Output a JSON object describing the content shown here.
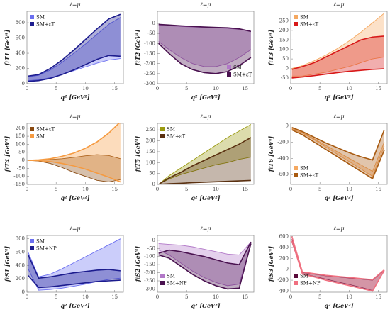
{
  "chart_data": [
    {
      "type": "band",
      "title": "ℓ=μ",
      "xlabel": "q²  [GeV²]",
      "ylabel": "fℓT1 [GeV⁴]",
      "legend": "upper left",
      "x": [
        0.2,
        2,
        4,
        6,
        8,
        10,
        12,
        14,
        16
      ],
      "xlim": [
        0,
        16.5
      ],
      "xticks": [
        0,
        5,
        10,
        15
      ],
      "ylim": [
        0,
        950
      ],
      "yticks": [
        0,
        200,
        400,
        600,
        800
      ],
      "series": [
        {
          "name": "SM",
          "color": "#6b6ff0",
          "values": [
            90,
            110,
            180,
            280,
            400,
            520,
            650,
            780,
            870
          ],
          "lower": [
            40,
            50,
            80,
            120,
            170,
            220,
            270,
            310,
            330
          ]
        },
        {
          "name": "SM+εT",
          "color": "#1c1c8e",
          "values": [
            100,
            120,
            200,
            310,
            440,
            580,
            720,
            850,
            910
          ],
          "lower": [
            30,
            40,
            70,
            120,
            180,
            250,
            320,
            370,
            360
          ]
        }
      ]
    },
    {
      "type": "band",
      "title": "ℓ=μ",
      "xlabel": "q²  [GeV²]",
      "ylabel": "fℓT2 [GeV⁴]",
      "legend": "lower right",
      "x": [
        0.2,
        2,
        4,
        6,
        8,
        10,
        12,
        14,
        16
      ],
      "xlim": [
        0,
        16.5
      ],
      "xticks": [
        0,
        5,
        10,
        15
      ],
      "ylim": [
        -300,
        60
      ],
      "yticks": [
        0,
        -50,
        -100,
        -150,
        -200,
        -250,
        -300
      ],
      "series": [
        {
          "name": "SM",
          "color": "#b278c8",
          "values": [
            -10,
            -12,
            -15,
            -18,
            -20,
            -22,
            -25,
            -30,
            -40
          ],
          "lower": [
            -90,
            -130,
            -170,
            -200,
            -215,
            -215,
            -200,
            -170,
            -130
          ]
        },
        {
          "name": "SM+εT",
          "color": "#4a1250",
          "values": [
            -5,
            -8,
            -12,
            -15,
            -18,
            -20,
            -22,
            -27,
            -40
          ],
          "lower": [
            -100,
            -150,
            -200,
            -230,
            -245,
            -250,
            -240,
            -210,
            -170
          ]
        }
      ]
    },
    {
      "type": "band",
      "title": "ℓ=μ",
      "xlabel": "q²  [GeV²]",
      "ylabel": "fℓT3 [GeV⁴]",
      "legend": "upper left",
      "x": [
        0.2,
        2,
        4,
        6,
        8,
        10,
        12,
        14,
        16
      ],
      "xlim": [
        0,
        16.5
      ],
      "xticks": [
        0,
        5,
        10,
        15
      ],
      "ylim": [
        -80,
        300
      ],
      "yticks": [
        -50,
        0,
        50,
        100,
        150,
        200,
        250
      ],
      "series": [
        {
          "name": "SM",
          "color": "#f5a860",
          "values": [
            0,
            15,
            40,
            70,
            105,
            145,
            190,
            240,
            290
          ],
          "lower": [
            -40,
            -40,
            -30,
            -20,
            -5,
            10,
            30,
            50,
            60
          ]
        },
        {
          "name": "SM+εT",
          "color": "#d81818",
          "values": [
            -5,
            10,
            30,
            60,
            90,
            120,
            150,
            165,
            170
          ],
          "lower": [
            -50,
            -45,
            -38,
            -30,
            -22,
            -15,
            -10,
            -5,
            -2
          ]
        }
      ]
    },
    {
      "type": "band",
      "title": "ℓ=μ",
      "xlabel": "q²  [GeV²]",
      "ylabel": "fℓT4 [GeV⁴]",
      "legend": "upper left",
      "x": [
        0.2,
        2,
        4,
        6,
        8,
        10,
        12,
        14,
        16
      ],
      "xlim": [
        0,
        16.5
      ],
      "xticks": [
        0,
        5,
        10,
        15
      ],
      "ylim": [
        -150,
        230
      ],
      "yticks": [
        -150,
        -100,
        -50,
        0,
        50,
        100,
        150,
        200
      ],
      "series": [
        {
          "name": "SM+εT",
          "color": "#8a4a10",
          "values": [
            0,
            2,
            5,
            10,
            18,
            28,
            35,
            30,
            10
          ],
          "lower": [
            0,
            -5,
            -20,
            -45,
            -75,
            -100,
            -125,
            -135,
            -120
          ]
        },
        {
          "name": "SM",
          "color": "#f59a40",
          "values": [
            0,
            3,
            10,
            25,
            45,
            75,
            115,
            170,
            240
          ],
          "lower": [
            0,
            -2,
            -8,
            -20,
            -35,
            -55,
            -80,
            -105,
            -135
          ]
        }
      ]
    },
    {
      "type": "band",
      "title": "ℓ=μ",
      "xlabel": "q²  [GeV²]",
      "ylabel": "fℓT5 [GeV⁴]",
      "legend": "upper left",
      "x": [
        0.2,
        2,
        4,
        6,
        8,
        10,
        12,
        14,
        16
      ],
      "xlim": [
        0,
        16.5
      ],
      "xticks": [
        0,
        5,
        10,
        15
      ],
      "ylim": [
        0,
        280
      ],
      "yticks": [
        0,
        50,
        100,
        150,
        200,
        250
      ],
      "series": [
        {
          "name": "SM",
          "color": "#9a9a10",
          "values": [
            0,
            40,
            75,
            110,
            145,
            180,
            215,
            245,
            275
          ],
          "lower": [
            0,
            25,
            45,
            60,
            75,
            90,
            100,
            115,
            125
          ]
        },
        {
          "name": "SM+εT",
          "color": "#5a3010",
          "values": [
            0,
            30,
            55,
            85,
            110,
            135,
            160,
            185,
            215
          ],
          "lower": [
            0,
            3,
            5,
            8,
            10,
            12,
            14,
            16,
            18
          ]
        }
      ]
    },
    {
      "type": "band",
      "title": "ℓ=μ",
      "xlabel": "q²  [GeV²]",
      "ylabel": "fℓT6 [GeV⁴]",
      "legend": "lower left",
      "x": [
        0.2,
        2,
        4,
        6,
        8,
        10,
        12,
        14,
        16
      ],
      "xlim": [
        0,
        16.5
      ],
      "xticks": [
        0,
        5,
        10,
        15
      ],
      "ylim": [
        -720,
        30
      ],
      "yticks": [
        0,
        -200,
        -400,
        -600
      ],
      "series": [
        {
          "name": "SM",
          "color": "#f5a860",
          "values": [
            -30,
            -80,
            -160,
            -240,
            -320,
            -400,
            -480,
            -560,
            -200
          ],
          "lower": [
            -40,
            -90,
            -170,
            -260,
            -350,
            -440,
            -530,
            -620,
            -250
          ]
        },
        {
          "name": "SM+εT",
          "color": "#a85a10",
          "values": [
            -20,
            -70,
            -140,
            -210,
            -270,
            -330,
            -380,
            -420,
            -50
          ],
          "lower": [
            -50,
            -110,
            -200,
            -290,
            -380,
            -470,
            -560,
            -650,
            -300
          ]
        }
      ]
    },
    {
      "type": "band",
      "title": "ℓ=μ",
      "xlabel": "q²  [GeV²]",
      "ylabel": "fℓS1 [GeV⁴]",
      "legend": "upper left",
      "x": [
        0.2,
        2,
        4,
        6,
        8,
        10,
        12,
        14,
        16
      ],
      "xlim": [
        0,
        16.5
      ],
      "xticks": [
        0,
        5,
        10,
        15
      ],
      "ylim": [
        0,
        850
      ],
      "yticks": [
        0,
        200,
        400,
        600,
        800
      ],
      "series": [
        {
          "name": "SM",
          "color": "#6b6ff0",
          "values": [
            600,
            230,
            270,
            350,
            440,
            530,
            620,
            710,
            800
          ],
          "lower": [
            350,
            30,
            40,
            60,
            90,
            120,
            160,
            190,
            210
          ]
        },
        {
          "name": "SM+NP",
          "color": "#1c1c8e",
          "values": [
            560,
            210,
            230,
            260,
            290,
            310,
            330,
            340,
            320
          ],
          "lower": [
            250,
            70,
            80,
            100,
            120,
            140,
            160,
            170,
            180
          ]
        }
      ]
    },
    {
      "type": "band",
      "title": "ℓ=μ",
      "xlabel": "q²  [GeV²]",
      "ylabel": "fℓS2 [GeV⁴]",
      "legend": "lower left",
      "x": [
        0.2,
        2,
        4,
        6,
        8,
        10,
        12,
        14,
        16
      ],
      "xlim": [
        0,
        16.5
      ],
      "xticks": [
        0,
        5,
        10,
        15
      ],
      "ylim": [
        -320,
        30
      ],
      "yticks": [
        0,
        -50,
        -100,
        -150,
        -200,
        -250,
        -300
      ],
      "series": [
        {
          "name": "SM",
          "color": "#b278c8",
          "values": [
            -20,
            -25,
            -30,
            -40,
            -55,
            -70,
            -85,
            -90,
            -10
          ],
          "lower": [
            -60,
            -90,
            -140,
            -190,
            -230,
            -260,
            -280,
            -270,
            -20
          ]
        },
        {
          "name": "SM+NP",
          "color": "#4a1250",
          "values": [
            -80,
            -60,
            -70,
            -85,
            -100,
            -120,
            -140,
            -150,
            -10
          ],
          "lower": [
            -90,
            -110,
            -160,
            -210,
            -250,
            -280,
            -300,
            -295,
            -20
          ]
        }
      ]
    },
    {
      "type": "band",
      "title": "ℓ=μ",
      "xlabel": "q²  [GeV²]",
      "ylabel": "fℓS3 [GeV⁴]",
      "legend": "lower left",
      "x": [
        0.2,
        2,
        4,
        6,
        8,
        10,
        12,
        14,
        16
      ],
      "xlim": [
        0,
        16.5
      ],
      "xticks": [
        0,
        5,
        10,
        15
      ],
      "ylim": [
        -420,
        620
      ],
      "yticks": [
        -400,
        -200,
        0,
        200,
        400,
        600
      ],
      "series": [
        {
          "name": "SM",
          "color": "#5a0a3a",
          "values": [
            550,
            -60,
            -90,
            -120,
            -140,
            -160,
            -180,
            -200,
            -20
          ],
          "lower": [
            500,
            -80,
            -130,
            -180,
            -230,
            -280,
            -330,
            -390,
            -30
          ]
        },
        {
          "name": "SM+NP",
          "color": "#f07080",
          "values": [
            600,
            -50,
            -80,
            -110,
            -130,
            -150,
            -170,
            -190,
            -10
          ],
          "lower": [
            520,
            -90,
            -140,
            -200,
            -250,
            -300,
            -350,
            -400,
            -20
          ]
        }
      ]
    }
  ]
}
